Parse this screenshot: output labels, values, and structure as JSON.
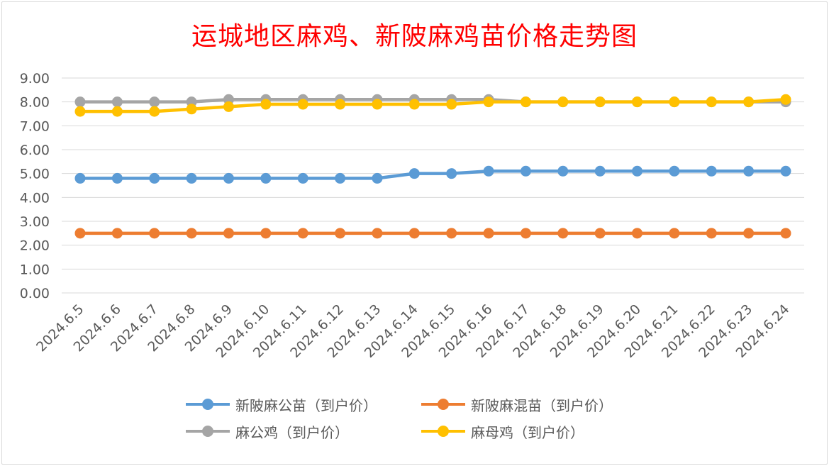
{
  "chart_data": {
    "type": "line",
    "title": "运城地区麻鸡、新陂麻鸡苗价格走势图",
    "xlabel": "",
    "ylabel": "",
    "categories": [
      "2024.6.5",
      "2024.6.6",
      "2024.6.7",
      "2024.6.8",
      "2024.6.9",
      "2024.6.10",
      "2024.6.11",
      "2024.6.12",
      "2024.6.13",
      "2024.6.14",
      "2024.6.15",
      "2024.6.16",
      "2024.6.17",
      "2024.6.18",
      "2024.6.19",
      "2024.6.20",
      "2024.6.21",
      "2024.6.22",
      "2024.6.23",
      "2024.6.24"
    ],
    "ylim": [
      0,
      9
    ],
    "yticks": [
      "0.00",
      "1.00",
      "2.00",
      "3.00",
      "4.00",
      "5.00",
      "6.00",
      "7.00",
      "8.00",
      "9.00"
    ],
    "grid": true,
    "legend_position": "bottom",
    "series": [
      {
        "name": "新陂麻公苗（到户价）",
        "color": "#5b9bd5",
        "values": [
          4.8,
          4.8,
          4.8,
          4.8,
          4.8,
          4.8,
          4.8,
          4.8,
          4.8,
          5.0,
          5.0,
          5.1,
          5.1,
          5.1,
          5.1,
          5.1,
          5.1,
          5.1,
          5.1,
          5.1
        ]
      },
      {
        "name": "新陂麻混苗（到户价）",
        "color": "#ed7d31",
        "values": [
          2.5,
          2.5,
          2.5,
          2.5,
          2.5,
          2.5,
          2.5,
          2.5,
          2.5,
          2.5,
          2.5,
          2.5,
          2.5,
          2.5,
          2.5,
          2.5,
          2.5,
          2.5,
          2.5,
          2.5
        ]
      },
      {
        "name": "麻公鸡（到户价）",
        "color": "#a5a5a5",
        "values": [
          8.0,
          8.0,
          8.0,
          8.0,
          8.1,
          8.1,
          8.1,
          8.1,
          8.1,
          8.1,
          8.1,
          8.1,
          8.0,
          8.0,
          8.0,
          8.0,
          8.0,
          8.0,
          8.0,
          8.0
        ]
      },
      {
        "name": "麻母鸡（到户价）",
        "color": "#ffc000",
        "values": [
          7.6,
          7.6,
          7.6,
          7.7,
          7.8,
          7.9,
          7.9,
          7.9,
          7.9,
          7.9,
          7.9,
          8.0,
          8.0,
          8.0,
          8.0,
          8.0,
          8.0,
          8.0,
          8.0,
          8.1
        ]
      }
    ]
  }
}
